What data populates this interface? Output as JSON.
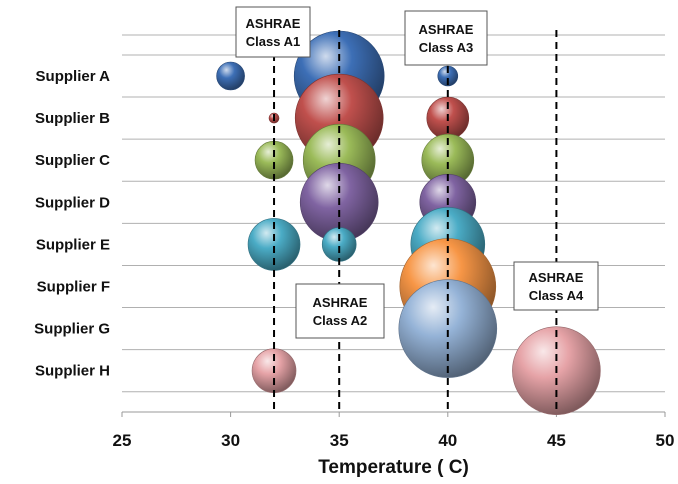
{
  "chart_data": {
    "type": "bubble",
    "title": "",
    "xlabel": "Temperature ( C)",
    "ylabel": "",
    "xlim": [
      25,
      50
    ],
    "xticks": [
      25,
      30,
      35,
      40,
      45,
      50
    ],
    "categories": [
      "Supplier A",
      "Supplier B",
      "Supplier C",
      "Supplier D",
      "Supplier E",
      "Supplier F",
      "Supplier G",
      "Supplier H"
    ],
    "grid": true,
    "legend": "none",
    "series": [
      {
        "category": "Supplier A",
        "color": "#3d6fb6",
        "points": [
          {
            "x": 30,
            "size": 14
          },
          {
            "x": 35,
            "size": 45
          },
          {
            "x": 40,
            "size": 10
          }
        ]
      },
      {
        "category": "Supplier B",
        "color": "#c0504d",
        "points": [
          {
            "x": 32,
            "size": 5
          },
          {
            "x": 35,
            "size": 44
          },
          {
            "x": 40,
            "size": 21
          }
        ]
      },
      {
        "category": "Supplier C",
        "color": "#9bbb59",
        "points": [
          {
            "x": 32,
            "size": 19
          },
          {
            "x": 35,
            "size": 36
          },
          {
            "x": 40,
            "size": 26
          }
        ]
      },
      {
        "category": "Supplier D",
        "color": "#8064a2",
        "points": [
          {
            "x": 35,
            "size": 39
          },
          {
            "x": 40,
            "size": 28
          }
        ]
      },
      {
        "category": "Supplier E",
        "color": "#4bacc6",
        "points": [
          {
            "x": 32,
            "size": 26
          },
          {
            "x": 35,
            "size": 17
          },
          {
            "x": 40,
            "size": 37
          }
        ]
      },
      {
        "category": "Supplier F",
        "color": "#f79646",
        "points": [
          {
            "x": 40,
            "size": 48
          }
        ]
      },
      {
        "category": "Supplier G",
        "color": "#95b3d7",
        "points": [
          {
            "x": 40,
            "size": 49
          }
        ]
      },
      {
        "category": "Supplier H",
        "color": "#e6a3a7",
        "points": [
          {
            "x": 32,
            "size": 22
          },
          {
            "x": 45,
            "size": 44
          }
        ]
      }
    ],
    "thresholds": [
      {
        "x": 32,
        "label_line1": "ASHRAE",
        "label_line2": "Class A1"
      },
      {
        "x": 35,
        "label_line1": "ASHRAE",
        "label_line2": "Class A2"
      },
      {
        "x": 40,
        "label_line1": "ASHRAE",
        "label_line2": "Class A3"
      },
      {
        "x": 45,
        "label_line1": "ASHRAE",
        "label_line2": "Class A4"
      }
    ]
  }
}
